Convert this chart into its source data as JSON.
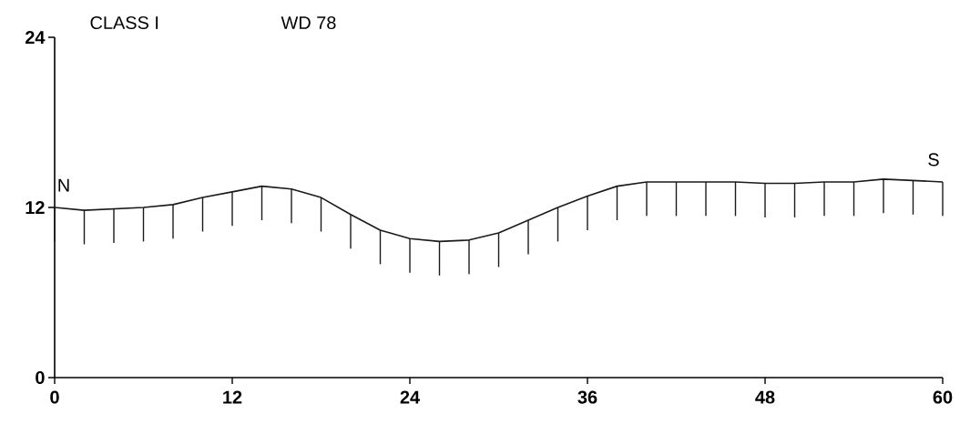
{
  "chart_data": {
    "type": "line",
    "title": "CLASS I",
    "subtitle": "WD 78",
    "x": [
      0,
      2,
      4,
      6,
      8,
      10,
      12,
      14,
      16,
      18,
      20,
      22,
      24,
      26,
      28,
      30,
      32,
      34,
      36,
      38,
      40,
      42,
      44,
      46,
      48,
      50,
      52,
      54,
      56,
      58,
      60
    ],
    "series": [
      {
        "color": "#1a1a1a",
        "values": [
          12.0,
          11.8,
          11.9,
          12.0,
          12.2,
          12.7,
          13.1,
          13.5,
          13.3,
          12.7,
          11.5,
          10.4,
          9.8,
          9.6,
          9.7,
          10.2,
          11.1,
          12.0,
          12.8,
          13.5,
          13.8,
          13.8,
          13.8,
          13.8,
          13.7,
          13.7,
          13.8,
          13.8,
          14.0,
          13.9,
          13.8
        ],
        "errors": [
          [
            9.6,
            12.0
          ],
          [
            9.4,
            11.8
          ],
          [
            9.5,
            11.9
          ],
          [
            9.6,
            12.0
          ],
          [
            9.8,
            12.2
          ],
          [
            10.3,
            12.7
          ],
          [
            10.7,
            13.1
          ],
          [
            11.1,
            13.5
          ],
          [
            10.9,
            13.3
          ],
          [
            10.3,
            12.7
          ],
          [
            9.1,
            11.5
          ],
          [
            8.0,
            10.4
          ],
          [
            7.4,
            9.8
          ],
          [
            7.2,
            9.6
          ],
          [
            7.3,
            9.7
          ],
          [
            7.8,
            10.2
          ],
          [
            8.7,
            11.1
          ],
          [
            9.6,
            12.0
          ],
          [
            10.4,
            12.8
          ],
          [
            11.1,
            13.5
          ],
          [
            11.4,
            13.8
          ],
          [
            11.4,
            13.8
          ],
          [
            11.4,
            13.8
          ],
          [
            11.4,
            13.8
          ],
          [
            11.3,
            13.7
          ],
          [
            11.3,
            13.7
          ],
          [
            11.4,
            13.8
          ],
          [
            11.4,
            13.8
          ],
          [
            11.6,
            14.0
          ],
          [
            11.5,
            13.9
          ],
          [
            11.4,
            13.8
          ]
        ]
      }
    ],
    "xlim": [
      0,
      60
    ],
    "ylim": [
      0,
      24
    ],
    "xticks": [
      0,
      12,
      24,
      36,
      48,
      60
    ],
    "yticks": [
      0,
      12,
      24
    ],
    "grid": false,
    "marker": "none",
    "line_style": "solid",
    "annotations": [
      {
        "text": "N",
        "x": 0,
        "y": 12
      },
      {
        "text": "S",
        "x": 60,
        "y": 13.8
      }
    ]
  }
}
